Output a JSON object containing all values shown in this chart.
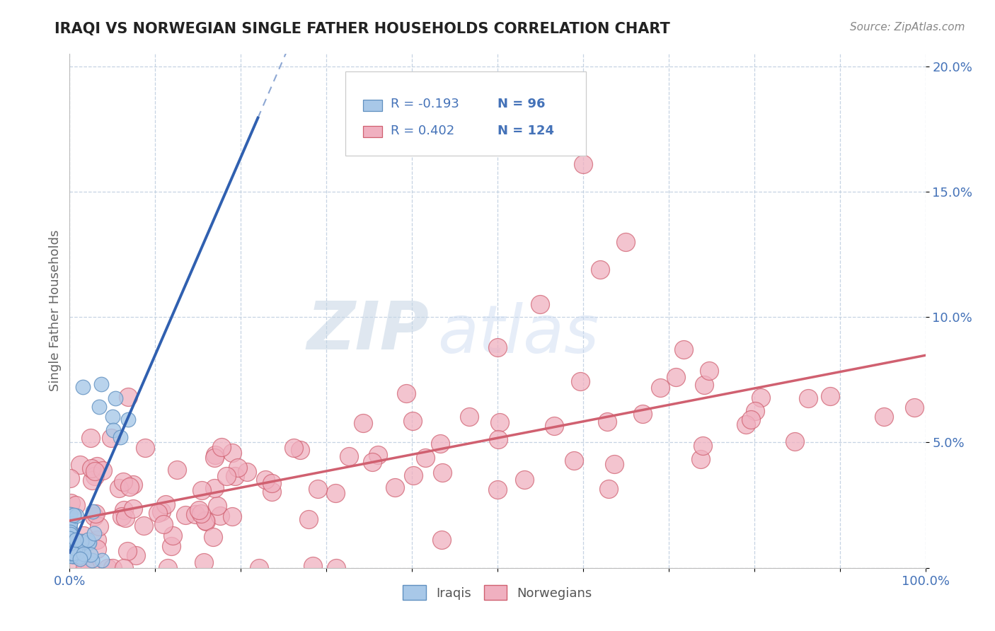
{
  "title": "IRAQI VS NORWEGIAN SINGLE FATHER HOUSEHOLDS CORRELATION CHART",
  "source": "Source: ZipAtlas.com",
  "ylabel": "Single Father Households",
  "xlim": [
    0.0,
    1.0
  ],
  "ylim": [
    0.0,
    0.205
  ],
  "x_ticks": [
    0.0,
    0.1,
    0.2,
    0.3,
    0.4,
    0.5,
    0.6,
    0.7,
    0.8,
    0.9,
    1.0
  ],
  "x_tick_labels": [
    "0.0%",
    "",
    "",
    "",
    "",
    "",
    "",
    "",
    "",
    "",
    "100.0%"
  ],
  "y_ticks": [
    0.0,
    0.05,
    0.1,
    0.15,
    0.2
  ],
  "y_tick_labels": [
    "",
    "5.0%",
    "10.0%",
    "15.0%",
    "20.0%"
  ],
  "iraqis_R": -0.193,
  "iraqis_N": 96,
  "norwegians_R": 0.402,
  "norwegians_N": 124,
  "iraqis_color": "#a8c8e8",
  "iraqis_edge_color": "#6090c0",
  "norwegians_color": "#f0b0c0",
  "norwegians_edge_color": "#d06070",
  "iraqis_line_color": "#3060b0",
  "norwegians_line_color": "#d06070",
  "watermark_zip": "ZIP",
  "watermark_atlas": "atlas",
  "background_color": "#ffffff",
  "grid_color": "#c0cfe0",
  "title_color": "#222222",
  "tick_color": "#4472b8",
  "label_color": "#666666",
  "seed": 7
}
